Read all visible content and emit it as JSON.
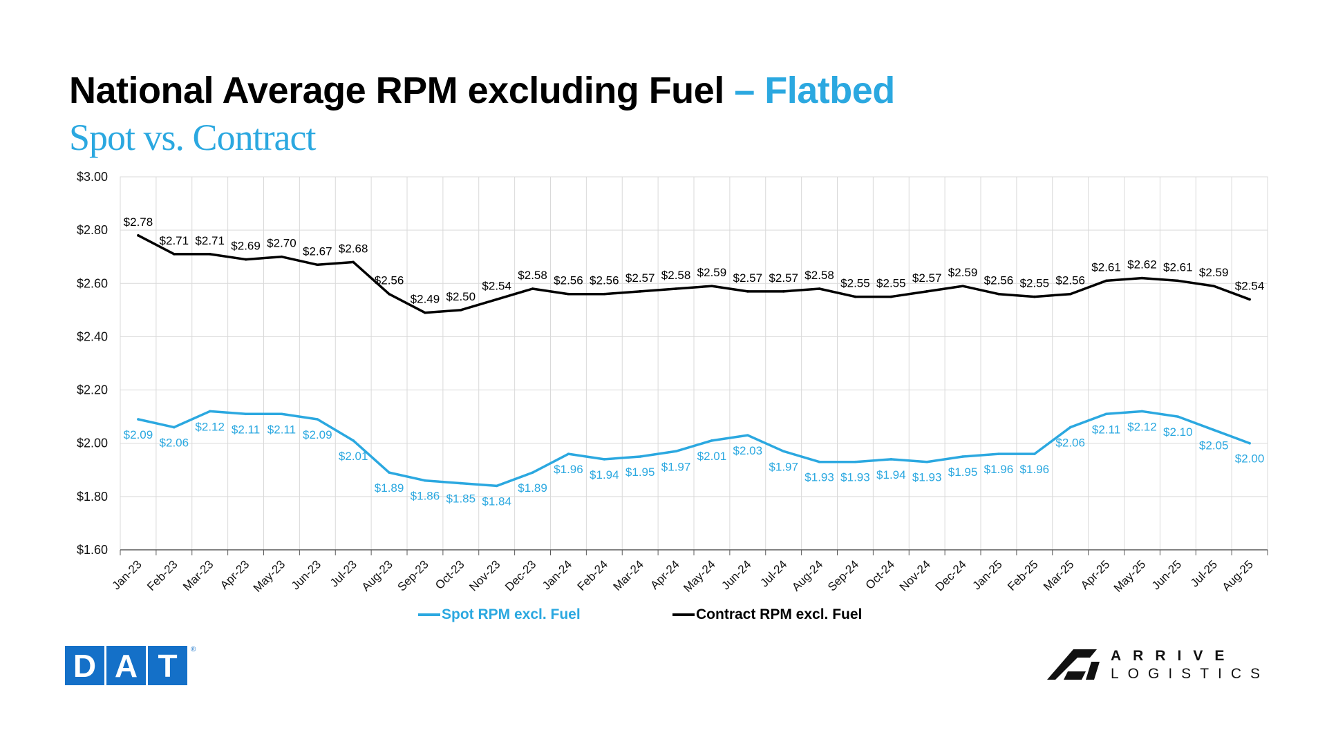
{
  "title": {
    "main": "National Average RPM excluding Fuel",
    "accent": "– Flatbed"
  },
  "subtitle": "Spot vs. Contract",
  "chart_data": {
    "type": "line",
    "categories": [
      "Jan-23",
      "Feb-23",
      "Mar-23",
      "Apr-23",
      "May-23",
      "Jun-23",
      "Jul-23",
      "Aug-23",
      "Sep-23",
      "Oct-23",
      "Nov-23",
      "Dec-23",
      "Jan-24",
      "Feb-24",
      "Mar-24",
      "Apr-24",
      "May-24",
      "Jun-24",
      "Jul-24",
      "Aug-24",
      "Sep-24",
      "Oct-24",
      "Nov-24",
      "Dec-24",
      "Jan-25",
      "Feb-25",
      "Mar-25",
      "Apr-25",
      "May-25",
      "Jun-25",
      "Jul-25",
      "Aug-25"
    ],
    "series": [
      {
        "name": "Spot RPM excl. Fuel",
        "color": "#2BA8E0",
        "values": [
          2.09,
          2.06,
          2.12,
          2.11,
          2.11,
          2.09,
          2.01,
          1.89,
          1.86,
          1.85,
          1.84,
          1.89,
          1.96,
          1.94,
          1.95,
          1.97,
          2.01,
          2.03,
          1.97,
          1.93,
          1.93,
          1.94,
          1.93,
          1.95,
          1.96,
          1.96,
          2.06,
          2.11,
          2.12,
          2.1,
          2.05,
          2.0
        ]
      },
      {
        "name": "Contract RPM excl. Fuel",
        "color": "#000000",
        "values": [
          2.78,
          2.71,
          2.71,
          2.69,
          2.7,
          2.67,
          2.68,
          2.56,
          2.49,
          2.5,
          2.54,
          2.58,
          2.56,
          2.56,
          2.57,
          2.58,
          2.59,
          2.57,
          2.57,
          2.58,
          2.55,
          2.55,
          2.57,
          2.59,
          2.56,
          2.55,
          2.56,
          2.61,
          2.62,
          2.61,
          2.59,
          2.54
        ]
      }
    ],
    "ylim": [
      1.6,
      3.0
    ],
    "yticks": [
      "$1.60",
      "$1.80",
      "$2.00",
      "$2.20",
      "$2.40",
      "$2.60",
      "$2.80",
      "$3.00"
    ],
    "value_prefix": "$",
    "grid": true,
    "legend_position": "bottom"
  },
  "logos": {
    "dat": {
      "letters": [
        "D",
        "A",
        "T"
      ],
      "registered": "®",
      "color": "#1470C8"
    },
    "arrive": {
      "line1": "ARRIVE",
      "line2": "LOGISTICS"
    }
  }
}
